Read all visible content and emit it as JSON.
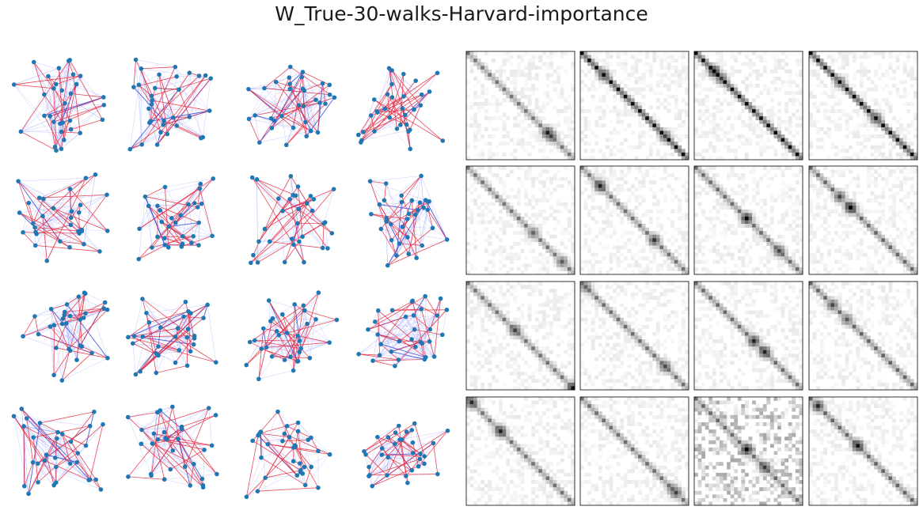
{
  "figure": {
    "title": "W_True-30-walks-Harvard-importance"
  },
  "panel_grid": {
    "rows": 4,
    "graph_columns": 4,
    "matrix_columns": 4,
    "matrix_size": 30
  },
  "colors": {
    "node": "#1f77b4",
    "walk_edge": "#e8283c",
    "weak_edge": "#9aa4ff",
    "strong_edge": "#1a2fd6",
    "matrix_frame": "#000000",
    "matrix_background": "#ffffff"
  }
}
